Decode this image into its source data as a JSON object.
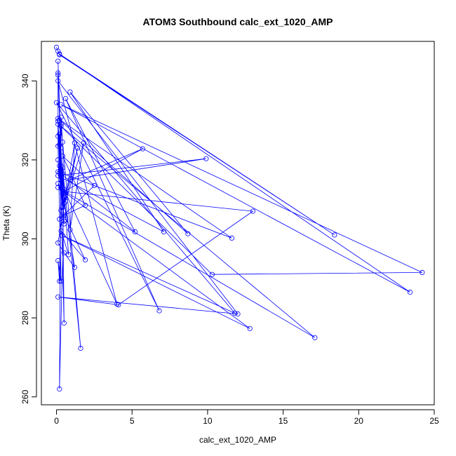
{
  "chart_data": {
    "type": "line",
    "title": "ATOM3 Southbound calc_ext_1020_AMP",
    "xlabel": "calc_ext_1020_AMP",
    "ylabel": "Theta (K)",
    "xlim": [
      -1,
      25
    ],
    "ylim": [
      258,
      350
    ],
    "xticks": [
      0,
      5,
      10,
      15,
      20,
      25
    ],
    "xtick_labels": [
      "0",
      "5",
      "10",
      "15",
      "20",
      "25"
    ],
    "yticks": [
      260,
      280,
      300,
      320,
      340
    ],
    "ytick_labels": [
      "260",
      "280",
      "300",
      "320",
      "340"
    ],
    "grid": false,
    "legend": "none",
    "series_color": "#0000ff",
    "marker": "open-circle",
    "series": [
      {
        "points": [
          [
            0.0,
            348.5
          ],
          [
            0.1,
            347.5
          ],
          [
            0.2,
            346.6
          ],
          [
            18.4,
            301.0
          ],
          [
            0.2,
            346.8
          ],
          [
            23.4,
            286.5
          ],
          [
            0.3,
            334.0
          ],
          [
            24.2,
            291.5
          ],
          [
            10.3,
            291.0
          ],
          [
            0.3,
            328.5
          ],
          [
            17.1,
            275.0
          ],
          [
            0.1,
            313.0
          ],
          [
            12.8,
            277.3
          ],
          [
            0.4,
            300.8
          ],
          [
            11.8,
            281.2
          ],
          [
            0.0,
            334.5
          ],
          [
            6.8,
            281.8
          ],
          [
            0.6,
            335.5
          ],
          [
            5.2,
            301.8
          ],
          [
            0.1,
            317.0
          ],
          [
            11.6,
            300.2
          ],
          [
            0.1,
            330.5
          ],
          [
            8.7,
            301.3
          ],
          [
            0.9,
            337.2
          ],
          [
            7.1,
            301.8
          ],
          [
            0.1,
            316.0
          ],
          [
            9.9,
            320.3
          ],
          [
            0.9,
            315.0
          ],
          [
            5.7,
            322.8
          ],
          [
            0.5,
            312.0
          ],
          [
            13.0,
            307.0
          ],
          [
            4.1,
            283.3
          ],
          [
            0.1,
            285.3
          ],
          [
            12.0,
            281.0
          ],
          [
            0.1,
            340.0
          ],
          [
            4.0,
            283.5
          ],
          [
            0.5,
            312.5
          ],
          [
            0.2,
            262.0
          ],
          [
            0.3,
            329.0
          ],
          [
            1.6,
            272.3
          ],
          [
            0.4,
            318.0
          ],
          [
            0.5,
            278.7
          ],
          [
            0.2,
            326.5
          ],
          [
            0.8,
            296.0
          ],
          [
            0.3,
            302.0
          ],
          [
            1.9,
            294.7
          ],
          [
            0.5,
            306.0
          ],
          [
            1.9,
            308.5
          ],
          [
            0.4,
            321.0
          ],
          [
            2.5,
            313.5
          ],
          [
            0.2,
            305.0
          ],
          [
            1.4,
            323.0
          ],
          [
            0.6,
            309.5
          ],
          [
            1.8,
            324.3
          ],
          [
            0.9,
            302.3
          ],
          [
            1.2,
            324.3
          ],
          [
            0.1,
            299.0
          ],
          [
            0.5,
            296.5
          ],
          [
            1.2,
            292.8
          ],
          [
            0.3,
            315.0
          ],
          [
            0.2,
            289.3
          ],
          [
            0.1,
            294.5
          ],
          [
            0.3,
            289.3
          ],
          [
            0.1,
            323.5
          ],
          [
            0.1,
            341.5
          ],
          [
            0.3,
            323.0
          ],
          [
            0.3,
            330.8
          ],
          [
            0.4,
            324.5
          ],
          [
            0.5,
            310.5
          ],
          [
            0.2,
            318.5
          ],
          [
            0.1,
            329.8
          ],
          [
            0.3,
            315.8
          ],
          [
            0.5,
            304.5
          ],
          [
            0.2,
            316.8
          ],
          [
            0.1,
            320.0
          ],
          [
            0.4,
            308.0
          ],
          [
            0.1,
            342.0
          ],
          [
            0.4,
            313.0
          ],
          [
            0.2,
            330.0
          ],
          [
            0.5,
            303.8
          ],
          [
            0.1,
            326.0
          ],
          [
            0.3,
            318.5
          ],
          [
            0.1,
            345.0
          ],
          [
            0.4,
            311.5
          ],
          [
            0.1,
            314.0
          ],
          [
            0.5,
            309.0
          ],
          [
            0.2,
            323.8
          ],
          [
            0.3,
            307.2
          ],
          [
            0.1,
            329.0
          ],
          [
            0.4,
            316.5
          ]
        ]
      }
    ]
  }
}
